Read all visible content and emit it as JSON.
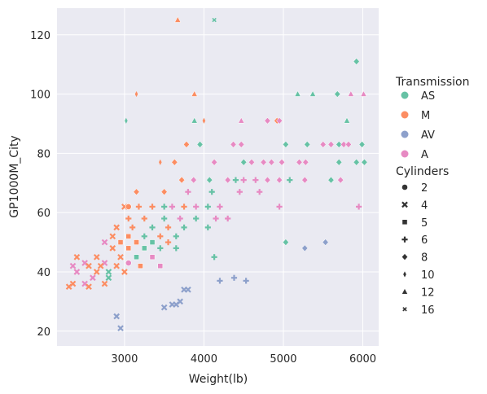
{
  "chart_data": {
    "type": "scatter",
    "xlabel": "Weight(lb)",
    "ylabel": "GP1000M_City",
    "xlim": [
      2150,
      6200
    ],
    "ylim": [
      15,
      129
    ],
    "xticks": [
      "3000",
      "4000",
      "5000",
      "6000"
    ],
    "yticks": [
      "20",
      "40",
      "60",
      "80",
      "100",
      "120"
    ],
    "grid": true,
    "legend_placement": "right",
    "hue_title": "Transmission",
    "style_title": "Cylinders",
    "hue_levels": [
      {
        "name": "AS",
        "color": "#66c2a5"
      },
      {
        "name": "M",
        "color": "#fc8d62"
      },
      {
        "name": "AV",
        "color": "#8da0cb"
      },
      {
        "name": "A",
        "color": "#e78ac3"
      }
    ],
    "style_levels": [
      {
        "name": "2",
        "marker": "circle"
      },
      {
        "name": "4",
        "marker": "x"
      },
      {
        "name": "5",
        "marker": "square"
      },
      {
        "name": "6",
        "marker": "plus"
      },
      {
        "name": "8",
        "marker": "diamond"
      },
      {
        "name": "10",
        "marker": "thin-diamond"
      },
      {
        "name": "12",
        "marker": "triangle"
      },
      {
        "name": "16",
        "marker": "small-x"
      }
    ],
    "points": [
      {
        "x": 4130,
        "y": 125,
        "t": "AS",
        "c": "16"
      },
      {
        "x": 3670,
        "y": 125,
        "t": "M",
        "c": "12"
      },
      {
        "x": 5920,
        "y": 111,
        "t": "AS",
        "c": "8"
      },
      {
        "x": 3150,
        "y": 100,
        "t": "M",
        "c": "10"
      },
      {
        "x": 3880,
        "y": 100,
        "t": "M",
        "c": "12"
      },
      {
        "x": 5180,
        "y": 100,
        "t": "AS",
        "c": "12"
      },
      {
        "x": 5370,
        "y": 100,
        "t": "AS",
        "c": "12"
      },
      {
        "x": 5680,
        "y": 100,
        "t": "AS",
        "c": "8"
      },
      {
        "x": 5850,
        "y": 100,
        "t": "A",
        "c": "12"
      },
      {
        "x": 6010,
        "y": 100,
        "t": "A",
        "c": "12"
      },
      {
        "x": 3020,
        "y": 91,
        "t": "AS",
        "c": "10"
      },
      {
        "x": 3880,
        "y": 91,
        "t": "AS",
        "c": "12"
      },
      {
        "x": 4000,
        "y": 91,
        "t": "M",
        "c": "10"
      },
      {
        "x": 4470,
        "y": 91,
        "t": "A",
        "c": "12"
      },
      {
        "x": 4800,
        "y": 91,
        "t": "A",
        "c": "8"
      },
      {
        "x": 4920,
        "y": 91,
        "t": "M",
        "c": "8"
      },
      {
        "x": 4950,
        "y": 91,
        "t": "A",
        "c": "8"
      },
      {
        "x": 5800,
        "y": 91,
        "t": "AS",
        "c": "12"
      },
      {
        "x": 3780,
        "y": 83,
        "t": "M",
        "c": "8"
      },
      {
        "x": 3950,
        "y": 83,
        "t": "AS",
        "c": "8"
      },
      {
        "x": 4370,
        "y": 83,
        "t": "A",
        "c": "8"
      },
      {
        "x": 4470,
        "y": 83,
        "t": "A",
        "c": "8"
      },
      {
        "x": 5030,
        "y": 83,
        "t": "AS",
        "c": "8"
      },
      {
        "x": 5300,
        "y": 83,
        "t": "AS",
        "c": "8"
      },
      {
        "x": 5500,
        "y": 83,
        "t": "A",
        "c": "8"
      },
      {
        "x": 5600,
        "y": 83,
        "t": "A",
        "c": "8"
      },
      {
        "x": 5700,
        "y": 83,
        "t": "AS",
        "c": "8"
      },
      {
        "x": 5760,
        "y": 83,
        "t": "A",
        "c": "8"
      },
      {
        "x": 5820,
        "y": 83,
        "t": "A",
        "c": "8"
      },
      {
        "x": 5990,
        "y": 83,
        "t": "AS",
        "c": "8"
      },
      {
        "x": 3450,
        "y": 77,
        "t": "M",
        "c": "10"
      },
      {
        "x": 3630,
        "y": 77,
        "t": "M",
        "c": "8"
      },
      {
        "x": 4130,
        "y": 77,
        "t": "A",
        "c": "8"
      },
      {
        "x": 4500,
        "y": 77,
        "t": "AS",
        "c": "8"
      },
      {
        "x": 4600,
        "y": 77,
        "t": "A",
        "c": "8"
      },
      {
        "x": 4750,
        "y": 77,
        "t": "A",
        "c": "8"
      },
      {
        "x": 4850,
        "y": 77,
        "t": "A",
        "c": "8"
      },
      {
        "x": 4980,
        "y": 77,
        "t": "A",
        "c": "8"
      },
      {
        "x": 5200,
        "y": 77,
        "t": "A",
        "c": "8"
      },
      {
        "x": 5280,
        "y": 77,
        "t": "A",
        "c": "8"
      },
      {
        "x": 5700,
        "y": 77,
        "t": "AS",
        "c": "8"
      },
      {
        "x": 5920,
        "y": 77,
        "t": "AS",
        "c": "8"
      },
      {
        "x": 6020,
        "y": 77,
        "t": "AS",
        "c": "8"
      },
      {
        "x": 3720,
        "y": 71,
        "t": "M",
        "c": "8"
      },
      {
        "x": 3870,
        "y": 71,
        "t": "A",
        "c": "8"
      },
      {
        "x": 4070,
        "y": 71,
        "t": "AS",
        "c": "8"
      },
      {
        "x": 4300,
        "y": 71,
        "t": "A",
        "c": "8"
      },
      {
        "x": 4400,
        "y": 71,
        "t": "AS",
        "c": "6"
      },
      {
        "x": 4500,
        "y": 71,
        "t": "A",
        "c": "6"
      },
      {
        "x": 4650,
        "y": 71,
        "t": "A",
        "c": "6"
      },
      {
        "x": 4800,
        "y": 71,
        "t": "A",
        "c": "8"
      },
      {
        "x": 4950,
        "y": 71,
        "t": "A",
        "c": "8"
      },
      {
        "x": 5080,
        "y": 71,
        "t": "AS",
        "c": "6"
      },
      {
        "x": 5270,
        "y": 71,
        "t": "A",
        "c": "8"
      },
      {
        "x": 5600,
        "y": 71,
        "t": "AS",
        "c": "8"
      },
      {
        "x": 5720,
        "y": 71,
        "t": "A",
        "c": "8"
      },
      {
        "x": 3000,
        "y": 62,
        "t": "M",
        "c": "4"
      },
      {
        "x": 3050,
        "y": 62,
        "t": "M",
        "c": "2"
      },
      {
        "x": 3180,
        "y": 62,
        "t": "M",
        "c": "6"
      },
      {
        "x": 3350,
        "y": 62,
        "t": "M",
        "c": "6"
      },
      {
        "x": 3500,
        "y": 62,
        "t": "AS",
        "c": "6"
      },
      {
        "x": 3600,
        "y": 62,
        "t": "A",
        "c": "6"
      },
      {
        "x": 3750,
        "y": 62,
        "t": "M",
        "c": "6"
      },
      {
        "x": 3900,
        "y": 62,
        "t": "A",
        "c": "6"
      },
      {
        "x": 4050,
        "y": 62,
        "t": "AS",
        "c": "6"
      },
      {
        "x": 4200,
        "y": 62,
        "t": "A",
        "c": "6"
      },
      {
        "x": 4950,
        "y": 62,
        "t": "A",
        "c": "6"
      },
      {
        "x": 5950,
        "y": 62,
        "t": "A",
        "c": "6"
      },
      {
        "x": 3150,
        "y": 67,
        "t": "M",
        "c": "8"
      },
      {
        "x": 3500,
        "y": 67,
        "t": "M",
        "c": "8"
      },
      {
        "x": 3800,
        "y": 67,
        "t": "A",
        "c": "6"
      },
      {
        "x": 4100,
        "y": 67,
        "t": "AS",
        "c": "6"
      },
      {
        "x": 4450,
        "y": 67,
        "t": "A",
        "c": "6"
      },
      {
        "x": 4700,
        "y": 67,
        "t": "A",
        "c": "6"
      },
      {
        "x": 3050,
        "y": 58,
        "t": "M",
        "c": "6"
      },
      {
        "x": 3250,
        "y": 58,
        "t": "M",
        "c": "6"
      },
      {
        "x": 3500,
        "y": 58,
        "t": "AS",
        "c": "6"
      },
      {
        "x": 3700,
        "y": 58,
        "t": "A",
        "c": "6"
      },
      {
        "x": 3900,
        "y": 58,
        "t": "AS",
        "c": "6"
      },
      {
        "x": 4150,
        "y": 58,
        "t": "A",
        "c": "6"
      },
      {
        "x": 4300,
        "y": 58,
        "t": "A",
        "c": "6"
      },
      {
        "x": 2900,
        "y": 55,
        "t": "M",
        "c": "4"
      },
      {
        "x": 3100,
        "y": 55,
        "t": "M",
        "c": "6"
      },
      {
        "x": 3350,
        "y": 55,
        "t": "AS",
        "c": "6"
      },
      {
        "x": 3550,
        "y": 55,
        "t": "M",
        "c": "6"
      },
      {
        "x": 3750,
        "y": 55,
        "t": "AS",
        "c": "6"
      },
      {
        "x": 4050,
        "y": 55,
        "t": "AS",
        "c": "6"
      },
      {
        "x": 2850,
        "y": 52,
        "t": "M",
        "c": "4"
      },
      {
        "x": 3050,
        "y": 52,
        "t": "M",
        "c": "5"
      },
      {
        "x": 3250,
        "y": 52,
        "t": "AS",
        "c": "6"
      },
      {
        "x": 3450,
        "y": 52,
        "t": "M",
        "c": "6"
      },
      {
        "x": 3650,
        "y": 52,
        "t": "AS",
        "c": "6"
      },
      {
        "x": 2750,
        "y": 50,
        "t": "A",
        "c": "4"
      },
      {
        "x": 2950,
        "y": 50,
        "t": "M",
        "c": "5"
      },
      {
        "x": 3150,
        "y": 50,
        "t": "M",
        "c": "5"
      },
      {
        "x": 3350,
        "y": 50,
        "t": "AS",
        "c": "5"
      },
      {
        "x": 3550,
        "y": 50,
        "t": "M",
        "c": "6"
      },
      {
        "x": 5030,
        "y": 50,
        "t": "AS",
        "c": "8"
      },
      {
        "x": 5530,
        "y": 50,
        "t": "AV",
        "c": "8"
      },
      {
        "x": 2850,
        "y": 48,
        "t": "M",
        "c": "4"
      },
      {
        "x": 3050,
        "y": 48,
        "t": "M",
        "c": "5"
      },
      {
        "x": 3250,
        "y": 48,
        "t": "AS",
        "c": "5"
      },
      {
        "x": 3450,
        "y": 48,
        "t": "AS",
        "c": "6"
      },
      {
        "x": 3650,
        "y": 48,
        "t": "AS",
        "c": "6"
      },
      {
        "x": 5270,
        "y": 48,
        "t": "AV",
        "c": "8"
      },
      {
        "x": 2650,
        "y": 45,
        "t": "M",
        "c": "4"
      },
      {
        "x": 2950,
        "y": 45,
        "t": "M",
        "c": "4"
      },
      {
        "x": 3150,
        "y": 45,
        "t": "AS",
        "c": "5"
      },
      {
        "x": 3350,
        "y": 45,
        "t": "A",
        "c": "5"
      },
      {
        "x": 4130,
        "y": 45,
        "t": "AS",
        "c": "6"
      },
      {
        "x": 2400,
        "y": 45,
        "t": "M",
        "c": "4"
      },
      {
        "x": 2500,
        "y": 43,
        "t": "A",
        "c": "4"
      },
      {
        "x": 2750,
        "y": 43,
        "t": "A",
        "c": "4"
      },
      {
        "x": 3050,
        "y": 43,
        "t": "A",
        "c": "2"
      },
      {
        "x": 2350,
        "y": 42,
        "t": "A",
        "c": "4"
      },
      {
        "x": 2550,
        "y": 42,
        "t": "M",
        "c": "4"
      },
      {
        "x": 2700,
        "y": 42,
        "t": "M",
        "c": "4"
      },
      {
        "x": 2900,
        "y": 42,
        "t": "M",
        "c": "4"
      },
      {
        "x": 3200,
        "y": 42,
        "t": "M",
        "c": "5"
      },
      {
        "x": 3450,
        "y": 42,
        "t": "A",
        "c": "5"
      },
      {
        "x": 2400,
        "y": 40,
        "t": "A",
        "c": "4"
      },
      {
        "x": 2650,
        "y": 40,
        "t": "M",
        "c": "4"
      },
      {
        "x": 2800,
        "y": 40,
        "t": "AS",
        "c": "4"
      },
      {
        "x": 3000,
        "y": 40,
        "t": "M",
        "c": "4"
      },
      {
        "x": 2600,
        "y": 38,
        "t": "A",
        "c": "4"
      },
      {
        "x": 2800,
        "y": 38,
        "t": "AS",
        "c": "4"
      },
      {
        "x": 2350,
        "y": 36,
        "t": "M",
        "c": "4"
      },
      {
        "x": 2500,
        "y": 36,
        "t": "A",
        "c": "4"
      },
      {
        "x": 2750,
        "y": 36,
        "t": "M",
        "c": "4"
      },
      {
        "x": 2300,
        "y": 35,
        "t": "M",
        "c": "4"
      },
      {
        "x": 2550,
        "y": 35,
        "t": "M",
        "c": "4"
      },
      {
        "x": 4380,
        "y": 38,
        "t": "AV",
        "c": "6"
      },
      {
        "x": 4200,
        "y": 37,
        "t": "AV",
        "c": "6"
      },
      {
        "x": 4530,
        "y": 37,
        "t": "AV",
        "c": "6"
      },
      {
        "x": 3750,
        "y": 34,
        "t": "AV",
        "c": "4"
      },
      {
        "x": 3800,
        "y": 34,
        "t": "AV",
        "c": "4"
      },
      {
        "x": 3700,
        "y": 30,
        "t": "AV",
        "c": "4"
      },
      {
        "x": 3600,
        "y": 29,
        "t": "AV",
        "c": "4"
      },
      {
        "x": 3650,
        "y": 29,
        "t": "AV",
        "c": "4"
      },
      {
        "x": 3500,
        "y": 28,
        "t": "AV",
        "c": "4"
      },
      {
        "x": 2900,
        "y": 25,
        "t": "AV",
        "c": "4"
      },
      {
        "x": 2950,
        "y": 21,
        "t": "AV",
        "c": "4"
      }
    ]
  }
}
